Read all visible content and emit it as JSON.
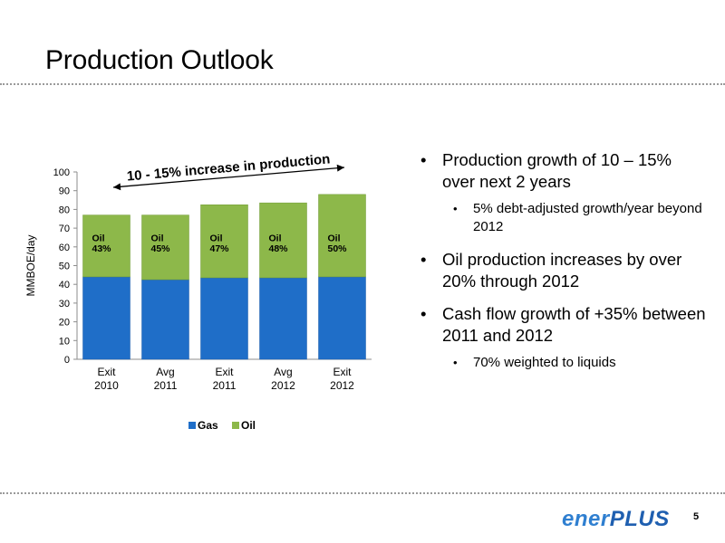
{
  "slide": {
    "title": "Production Outlook",
    "page_number": "5",
    "logo": {
      "part1": "ener",
      "part2": "PLUS"
    }
  },
  "bullets": [
    {
      "text": "Production growth of 10 – 15% over next 2 years",
      "sub": [
        "5% debt-adjusted growth/year beyond 2012"
      ]
    },
    {
      "text": "Oil production increases by over 20% through 2012",
      "sub": []
    },
    {
      "text": "Cash flow growth of +35% between 2011 and 2012",
      "sub": [
        "70% weighted to liquids"
      ]
    }
  ],
  "chart_data": {
    "type": "bar",
    "stacked": true,
    "categories": [
      "Exit\n2010",
      "Avg\n2011",
      "Exit\n2011",
      "Avg\n2012",
      "Exit\n2012"
    ],
    "series": [
      {
        "name": "Gas",
        "values": [
          44,
          42.5,
          43.5,
          43.5,
          44
        ],
        "color": "#1f6ec8"
      },
      {
        "name": "Oil",
        "values": [
          33,
          34.5,
          39,
          40,
          44
        ],
        "color": "#8db84a"
      }
    ],
    "bar_labels": [
      "Oil\n43%",
      "Oil\n45%",
      "Oil\n47%",
      "Oil\n48%",
      "Oil\n50%"
    ],
    "ylabel": "MMBOE/day",
    "ylim": [
      0,
      100
    ],
    "yticks": [
      0,
      10,
      20,
      30,
      40,
      50,
      60,
      70,
      80,
      90,
      100
    ],
    "annotation": "10 - 15% increase in production",
    "legend_position": "bottom",
    "grid": false
  }
}
